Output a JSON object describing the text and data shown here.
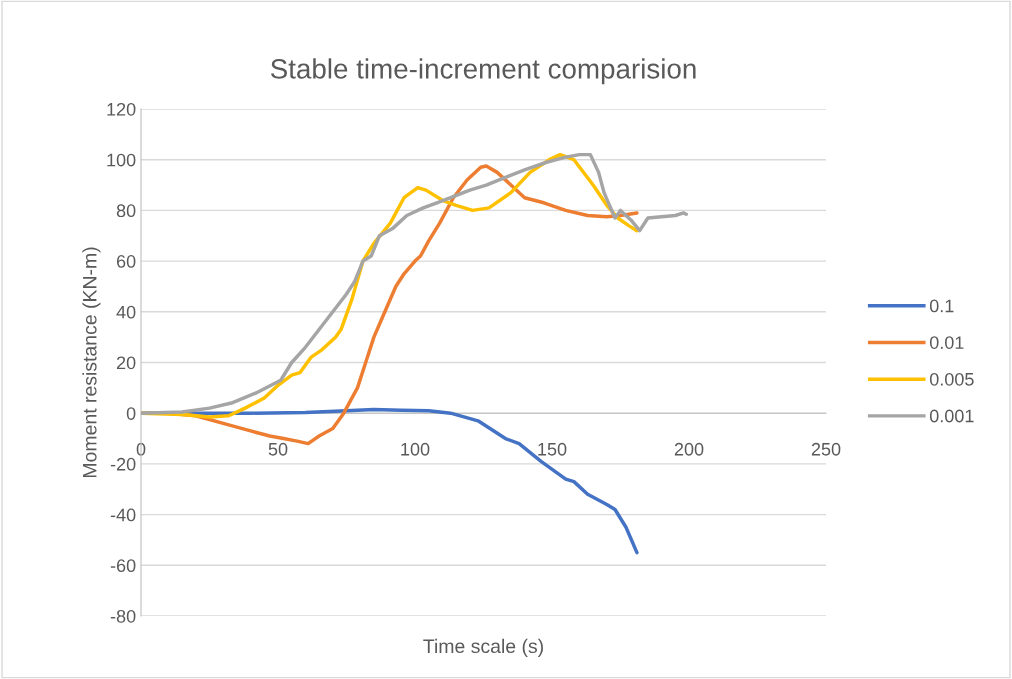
{
  "chart_data": {
    "type": "line",
    "title": "Stable time-increment comparision",
    "xlabel": "Time scale (s)",
    "ylabel": "Moment resistance (KN-m)",
    "xlim": [
      0,
      250
    ],
    "xticks": [
      0,
      50,
      100,
      150,
      200,
      250
    ],
    "ylim": [
      -80,
      120
    ],
    "yticks": [
      -80,
      -60,
      -40,
      -20,
      0,
      20,
      40,
      60,
      80,
      100,
      120
    ],
    "grid": "y",
    "legend": "right",
    "marker": "none",
    "line_style": "solid",
    "series": [
      {
        "name": "0.1",
        "color": "#4472c4",
        "x": [
          0,
          20,
          40,
          60,
          75,
          85,
          95,
          105,
          113,
          123,
          133,
          138,
          146,
          155,
          158,
          163,
          170,
          173,
          177,
          181
        ],
        "values": [
          0,
          0,
          0,
          0.3,
          1,
          1.5,
          1.2,
          1,
          0,
          -3,
          -10,
          -12,
          -19,
          -26,
          -27,
          -32,
          -36,
          -38,
          -45,
          -55
        ]
      },
      {
        "name": "0.01",
        "color": "#ed7d31",
        "x": [
          0,
          10,
          20,
          30,
          40,
          47,
          52,
          57,
          61,
          65,
          70,
          74,
          78,
          79,
          82,
          85,
          89,
          93,
          96,
          100,
          102,
          105,
          109,
          114,
          119,
          124,
          126,
          130,
          135,
          140,
          147,
          155,
          163,
          170,
          175,
          181
        ],
        "values": [
          0,
          0,
          -1,
          -4,
          -7,
          -9,
          -10,
          -11,
          -12,
          -9,
          -6,
          0,
          8,
          10,
          20,
          30,
          40,
          50,
          55,
          60,
          62,
          68,
          75,
          85,
          92,
          97,
          97.5,
          95,
          90,
          85,
          83,
          80,
          78,
          77.5,
          78,
          79
        ]
      },
      {
        "name": "0.005",
        "color": "#ffc000",
        "x": [
          0,
          15,
          25,
          32,
          38,
          45,
          50,
          55,
          58,
          62,
          66,
          71,
          73,
          77,
          81,
          85,
          91,
          96,
          101,
          104,
          110,
          115,
          121,
          127,
          135,
          142,
          149,
          153,
          158,
          165,
          170,
          174,
          178,
          181
        ],
        "values": [
          0,
          -0.5,
          -1.5,
          -1,
          2,
          6,
          11,
          15,
          16,
          22,
          25,
          30,
          33,
          45,
          60,
          67,
          75,
          85,
          89,
          88,
          84,
          82,
          80,
          81,
          87,
          95,
          100,
          102,
          100,
          90,
          82,
          77,
          74,
          72
        ]
      },
      {
        "name": "0.001",
        "color": "#a5a5a5",
        "x": [
          0,
          15,
          25,
          33,
          42,
          51,
          55,
          60,
          65,
          70,
          75,
          78,
          81,
          84,
          87,
          92,
          97,
          103,
          108,
          113,
          120,
          126,
          133,
          140,
          148,
          155,
          160,
          164,
          167,
          169,
          171,
          173,
          175,
          177,
          179,
          182,
          185,
          190,
          195,
          198,
          199
        ],
        "values": [
          0,
          0.5,
          2,
          4,
          8,
          13,
          20,
          26,
          33,
          40,
          47,
          52,
          60,
          62,
          70,
          73,
          78,
          81,
          83,
          85,
          88,
          90,
          93,
          96,
          99,
          101,
          102,
          102,
          95,
          87,
          82,
          77,
          80,
          78,
          76,
          72,
          77,
          77.5,
          78,
          79,
          78.5
        ]
      }
    ]
  }
}
